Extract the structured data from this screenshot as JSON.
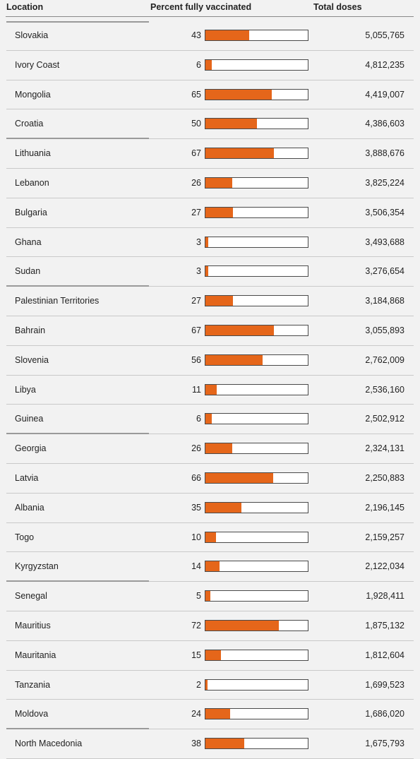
{
  "header": {
    "location": "Location",
    "percent": "Percent fully vaccinated",
    "doses": "Total doses"
  },
  "colors": {
    "bar_fill": "#e5661a",
    "bar_border": "#4a4a4a",
    "background": "#f2f2f2"
  },
  "rows": [
    {
      "location": "Slovakia",
      "percent": 43,
      "doses": "5,055,765"
    },
    {
      "location": "Ivory Coast",
      "percent": 6,
      "doses": "4,812,235"
    },
    {
      "location": "Mongolia",
      "percent": 65,
      "doses": "4,419,007"
    },
    {
      "location": "Croatia",
      "percent": 50,
      "doses": "4,386,603"
    },
    {
      "location": "Lithuania",
      "percent": 67,
      "doses": "3,888,676"
    },
    {
      "location": "Lebanon",
      "percent": 26,
      "doses": "3,825,224"
    },
    {
      "location": "Bulgaria",
      "percent": 27,
      "doses": "3,506,354"
    },
    {
      "location": "Ghana",
      "percent": 3,
      "doses": "3,493,688"
    },
    {
      "location": "Sudan",
      "percent": 3,
      "doses": "3,276,654"
    },
    {
      "location": "Palestinian Territories",
      "percent": 27,
      "doses": "3,184,868"
    },
    {
      "location": "Bahrain",
      "percent": 67,
      "doses": "3,055,893"
    },
    {
      "location": "Slovenia",
      "percent": 56,
      "doses": "2,762,009"
    },
    {
      "location": "Libya",
      "percent": 11,
      "doses": "2,536,160"
    },
    {
      "location": "Guinea",
      "percent": 6,
      "doses": "2,502,912"
    },
    {
      "location": "Georgia",
      "percent": 26,
      "doses": "2,324,131"
    },
    {
      "location": "Latvia",
      "percent": 66,
      "doses": "2,250,883"
    },
    {
      "location": "Albania",
      "percent": 35,
      "doses": "2,196,145"
    },
    {
      "location": "Togo",
      "percent": 10,
      "doses": "2,159,257"
    },
    {
      "location": "Kyrgyzstan",
      "percent": 14,
      "doses": "2,122,034"
    },
    {
      "location": "Senegal",
      "percent": 5,
      "doses": "1,928,411"
    },
    {
      "location": "Mauritius",
      "percent": 72,
      "doses": "1,875,132"
    },
    {
      "location": "Mauritania",
      "percent": 15,
      "doses": "1,812,604"
    },
    {
      "location": "Tanzania",
      "percent": 2,
      "doses": "1,699,523"
    },
    {
      "location": "Moldova",
      "percent": 24,
      "doses": "1,686,020"
    },
    {
      "location": "North Macedonia",
      "percent": 38,
      "doses": "1,675,793"
    }
  ]
}
